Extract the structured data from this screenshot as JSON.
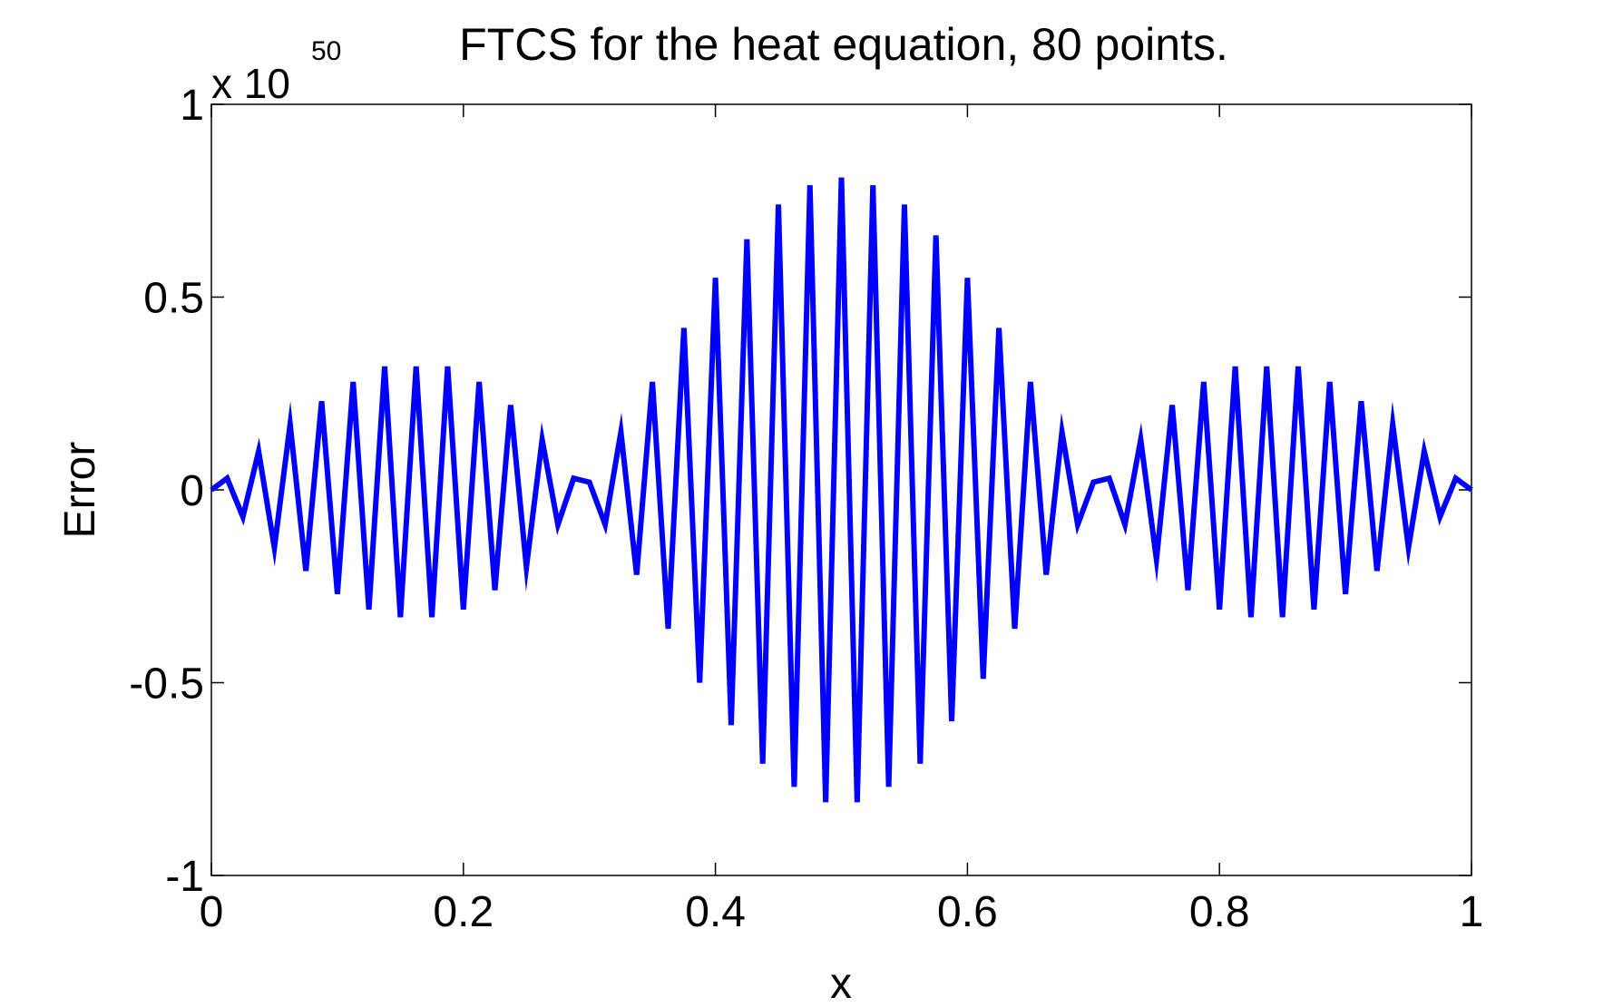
{
  "chart_data": {
    "type": "line",
    "title": "FTCS for the heat equation, 80 points.",
    "xlabel": "x",
    "ylabel": "Error",
    "xlim": [
      0,
      1
    ],
    "ylim": [
      -1,
      1
    ],
    "y_multiplier": {
      "base": "x 10",
      "exponent": "50"
    },
    "xticks": [
      0,
      0.2,
      0.4,
      0.6,
      0.8,
      1
    ],
    "xtick_labels": [
      "0",
      "0.2",
      "0.4",
      "0.6",
      "0.8",
      "1"
    ],
    "yticks": [
      -1,
      -0.5,
      0,
      0.5,
      1
    ],
    "ytick_labels": [
      "-1",
      "-0.5",
      "0",
      "0.5",
      "1"
    ],
    "grid": false,
    "series_color": "#0000ff",
    "series": [
      {
        "x": [
          0,
          0.0125,
          0.025,
          0.0375,
          0.05,
          0.0625,
          0.075,
          0.0875,
          0.1,
          0.1125,
          0.125,
          0.1375,
          0.15,
          0.1625,
          0.175,
          0.1875,
          0.2,
          0.2125,
          0.225,
          0.2375,
          0.25,
          0.2625,
          0.275,
          0.2875,
          0.3,
          0.3125,
          0.325,
          0.3375,
          0.35,
          0.3625,
          0.375,
          0.3875,
          0.4,
          0.4125,
          0.425,
          0.4375,
          0.45,
          0.4625,
          0.475,
          0.4875,
          0.5,
          0.5125,
          0.525,
          0.5375,
          0.55,
          0.5625,
          0.575,
          0.5875,
          0.6,
          0.6125,
          0.625,
          0.6375,
          0.65,
          0.6625,
          0.675,
          0.6875,
          0.7,
          0.7125,
          0.725,
          0.7375,
          0.75,
          0.7625,
          0.775,
          0.7875,
          0.8,
          0.8125,
          0.825,
          0.8375,
          0.85,
          0.8625,
          0.875,
          0.8875,
          0.9,
          0.9125,
          0.925,
          0.9375,
          0.95,
          0.9625,
          0.975,
          0.9875,
          1
        ],
        "values": [
          0,
          0.03,
          -0.07,
          0.1,
          -0.15,
          0.17,
          -0.21,
          0.23,
          -0.27,
          0.28,
          -0.31,
          0.32,
          -0.33,
          0.32,
          -0.33,
          0.32,
          -0.31,
          0.28,
          -0.26,
          0.22,
          -0.2,
          0.13,
          -0.09,
          0.03,
          0.02,
          -0.09,
          0.15,
          -0.22,
          0.28,
          -0.36,
          0.42,
          -0.5,
          0.55,
          -0.61,
          0.65,
          -0.71,
          0.74,
          -0.77,
          0.79,
          -0.81,
          0.81,
          -0.81,
          0.79,
          -0.77,
          0.74,
          -0.71,
          0.66,
          -0.6,
          0.55,
          -0.49,
          0.42,
          -0.36,
          0.28,
          -0.22,
          0.15,
          -0.09,
          0.02,
          0.03,
          -0.09,
          0.13,
          -0.18,
          0.22,
          -0.26,
          0.28,
          -0.31,
          0.32,
          -0.33,
          0.32,
          -0.33,
          0.32,
          -0.31,
          0.28,
          -0.27,
          0.23,
          -0.21,
          0.17,
          -0.15,
          0.1,
          -0.07,
          0.03,
          0
        ]
      }
    ]
  }
}
